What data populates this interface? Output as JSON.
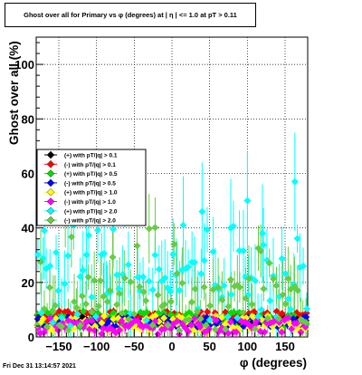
{
  "title": "Ghost over all for Primary vs φ (degrees) at |  η | <= 1.0 at pT > 0.11",
  "footer": "Fri Dec 31 13:14:57 2021",
  "chart_data": {
    "type": "scatter",
    "title": "Ghost over all for Primary vs φ (degrees) at |  η | <= 1.0 at pT > 0.11",
    "xlabel": "φ (degrees)",
    "ylabel": "Ghost over all (%)",
    "xlim": [
      -180,
      180
    ],
    "ylim": [
      0,
      110
    ],
    "xticks": [
      -150,
      -100,
      -50,
      0,
      50,
      100,
      150
    ],
    "xtick_labels": [
      "−150",
      "−100",
      "−50",
      "0",
      "50",
      "100",
      "150"
    ],
    "yticks": [
      0,
      20,
      40,
      60,
      80,
      100
    ],
    "grid": true,
    "legend_position": "left, middle",
    "series": [
      {
        "name": "(+) with pT/|q| > 0.1",
        "color": "#000000",
        "marker": "diamond",
        "base": 6,
        "spread": 2,
        "err": 1
      },
      {
        "name": "(-) with pT/|q| > 0.1",
        "color": "#ff0000",
        "marker": "diamond",
        "base": 7.5,
        "spread": 2,
        "err": 1
      },
      {
        "name": "(+) with pT/|q| > 0.5",
        "color": "#00dd00",
        "marker": "diamond",
        "base": 6.5,
        "spread": 3,
        "err": 1.5
      },
      {
        "name": "(-) with pT/|q| > 0.5",
        "color": "#0000ff",
        "marker": "diamond",
        "base": 5.5,
        "spread": 2,
        "err": 1.5
      },
      {
        "name": "(+) with pT/|q| > 1.0",
        "color": "#ffff00",
        "marker": "diamond",
        "base": 5,
        "spread": 3,
        "err": 2
      },
      {
        "name": "(-) with pT/|q| > 1.0",
        "color": "#ff00ff",
        "marker": "diamond",
        "base": 4,
        "spread": 3,
        "err": 2
      },
      {
        "name": "(+) with pT/|q| > 2.0",
        "color": "#00ffff",
        "marker": "diamond",
        "base": 18,
        "spread": 14,
        "err": 10
      },
      {
        "name": "(-) with pT/|q| > 2.0",
        "color": "#66cc44",
        "marker": "diamond",
        "base": 12,
        "spread": 10,
        "err": 9
      }
    ],
    "highlights": [
      {
        "series": 6,
        "x": 163,
        "y": 57
      },
      {
        "series": 6,
        "x": 40,
        "y": 46
      },
      {
        "series": 6,
        "x": 100,
        "y": 50
      },
      {
        "series": 6,
        "x": -169,
        "y": 39
      },
      {
        "series": 6,
        "x": 15,
        "y": 41
      },
      {
        "series": 6,
        "x": 78,
        "y": 40
      },
      {
        "series": 6,
        "x": 120,
        "y": 38
      }
    ]
  }
}
